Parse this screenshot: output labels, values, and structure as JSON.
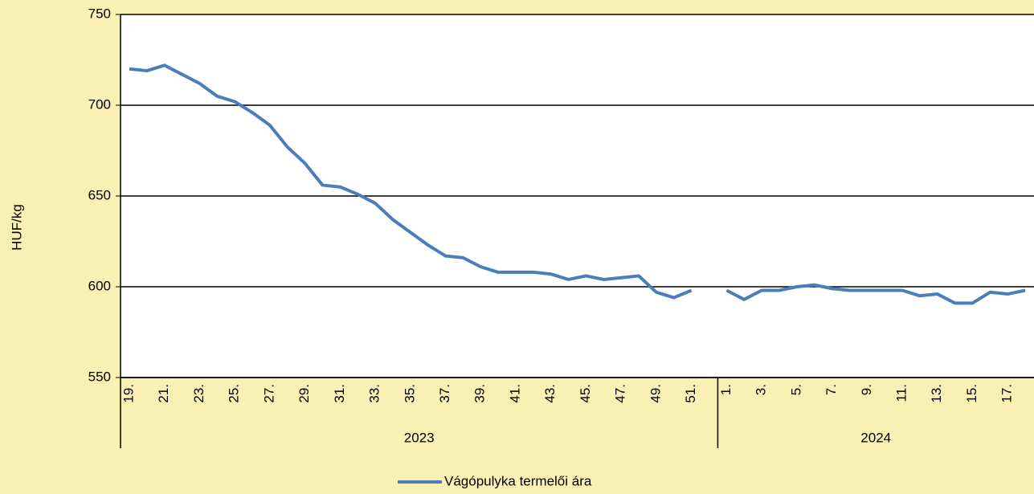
{
  "chart_data": {
    "type": "line",
    "ylabel": "HUF/kg",
    "category_groups": [
      {
        "label": "2023",
        "categories": [
          "19.",
          null,
          "21.",
          null,
          "23.",
          null,
          "25.",
          null,
          "27.",
          null,
          "29.",
          null,
          "31.",
          null,
          "33.",
          null,
          "35.",
          null,
          "37.",
          null,
          "39.",
          null,
          "41.",
          null,
          "43.",
          null,
          "45.",
          null,
          "47.",
          null,
          "49.",
          null,
          "51.",
          null
        ]
      },
      {
        "label": "2024",
        "categories": [
          "1.",
          null,
          "3.",
          null,
          "5.",
          null,
          "7.",
          null,
          "9.",
          null,
          "11.",
          null,
          "13.",
          null,
          "15.",
          null,
          "17.",
          null
        ]
      }
    ],
    "series": [
      {
        "name": "Vágópulyka termelői ára",
        "color": "#4a7ebb",
        "values": [
          720,
          719,
          722,
          717,
          712,
          705,
          702,
          696,
          689,
          677,
          668,
          656,
          655,
          651,
          646,
          637,
          630,
          623,
          617,
          616,
          611,
          608,
          608,
          608,
          607,
          604,
          606,
          604,
          605,
          606,
          597,
          594,
          598,
          null,
          598,
          593,
          598,
          598,
          600,
          601,
          599,
          598,
          598,
          598,
          598,
          595,
          596,
          591,
          591,
          597,
          596,
          598
        ]
      }
    ],
    "ylim": [
      550,
      750
    ],
    "yticks": [
      550,
      600,
      650,
      700,
      750
    ],
    "grid": true,
    "legend": "bottom"
  }
}
